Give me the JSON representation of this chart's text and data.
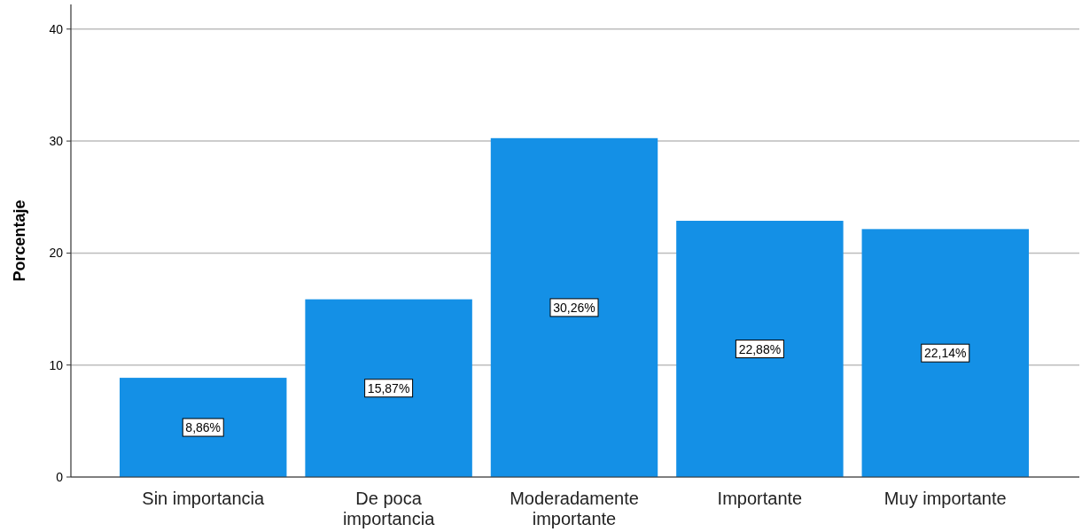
{
  "chart_data": {
    "type": "bar",
    "ylabel": "Porcentaje",
    "categories": [
      "Sin importancia",
      "De poca importancia",
      "Moderadamente importante",
      "Importante",
      "Muy importante"
    ],
    "values": [
      8.86,
      15.87,
      30.26,
      22.88,
      22.14
    ],
    "value_labels": [
      "8,86%",
      "15,87%",
      "30,26%",
      "22,88%",
      "22,14%"
    ],
    "color": "#1490e6",
    "ylim": [
      0,
      42.2
    ],
    "yticks": [
      0,
      10,
      20,
      30,
      40
    ],
    "grid": "y"
  }
}
